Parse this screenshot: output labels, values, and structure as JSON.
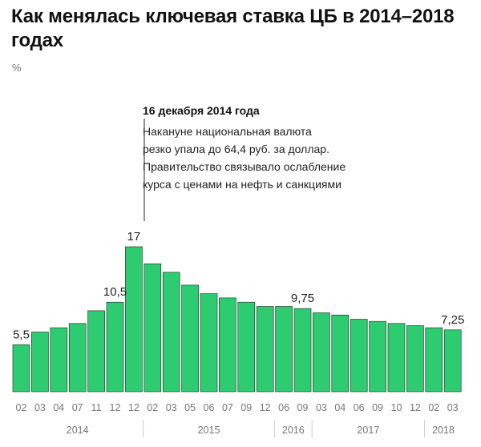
{
  "title": "Как менялась ключевая ставка ЦБ в 2014–2018 годах",
  "unit": "%",
  "colors": {
    "bar": "#2ecc71",
    "bar_stroke": "#1f1f1f",
    "text": "#111111",
    "muted": "#777777"
  },
  "annotation": {
    "title": "16 декабря 2014 года",
    "lines": [
      "Накануне национальная валюта",
      "резко упала до 64,4 руб. за доллар.",
      "Правительство связывало ослабление",
      "курса с ценами на нефть и санкциями"
    ]
  },
  "chart_data": {
    "type": "bar",
    "ylabel": "%",
    "ylim": [
      0,
      17
    ],
    "categories": [
      "02",
      "03",
      "04",
      "07",
      "11",
      "12",
      "12",
      "02",
      "03",
      "05",
      "06",
      "07",
      "09",
      "12",
      "06",
      "09",
      "03",
      "04",
      "06",
      "09",
      "10",
      "12",
      "02",
      "03"
    ],
    "values": [
      5.5,
      7,
      7.5,
      8,
      9.5,
      10.5,
      17,
      15,
      14,
      12.5,
      11.5,
      11,
      10.5,
      10,
      10,
      9.75,
      9.25,
      9,
      8.5,
      8.25,
      8,
      7.75,
      7.5,
      7.25
    ],
    "data_labels": [
      {
        "index": 0,
        "text": "5,5"
      },
      {
        "index": 5,
        "text": "10,5"
      },
      {
        "index": 6,
        "text": "17"
      },
      {
        "index": 15,
        "text": "9,75"
      },
      {
        "index": 23,
        "text": "7,25"
      }
    ],
    "years": [
      {
        "label": "2014",
        "from": 0,
        "to": 6
      },
      {
        "label": "2015",
        "from": 7,
        "to": 13
      },
      {
        "label": "2016",
        "from": 14,
        "to": 15
      },
      {
        "label": "2017",
        "from": 16,
        "to": 21
      },
      {
        "label": "2018",
        "from": 22,
        "to": 23
      }
    ]
  }
}
